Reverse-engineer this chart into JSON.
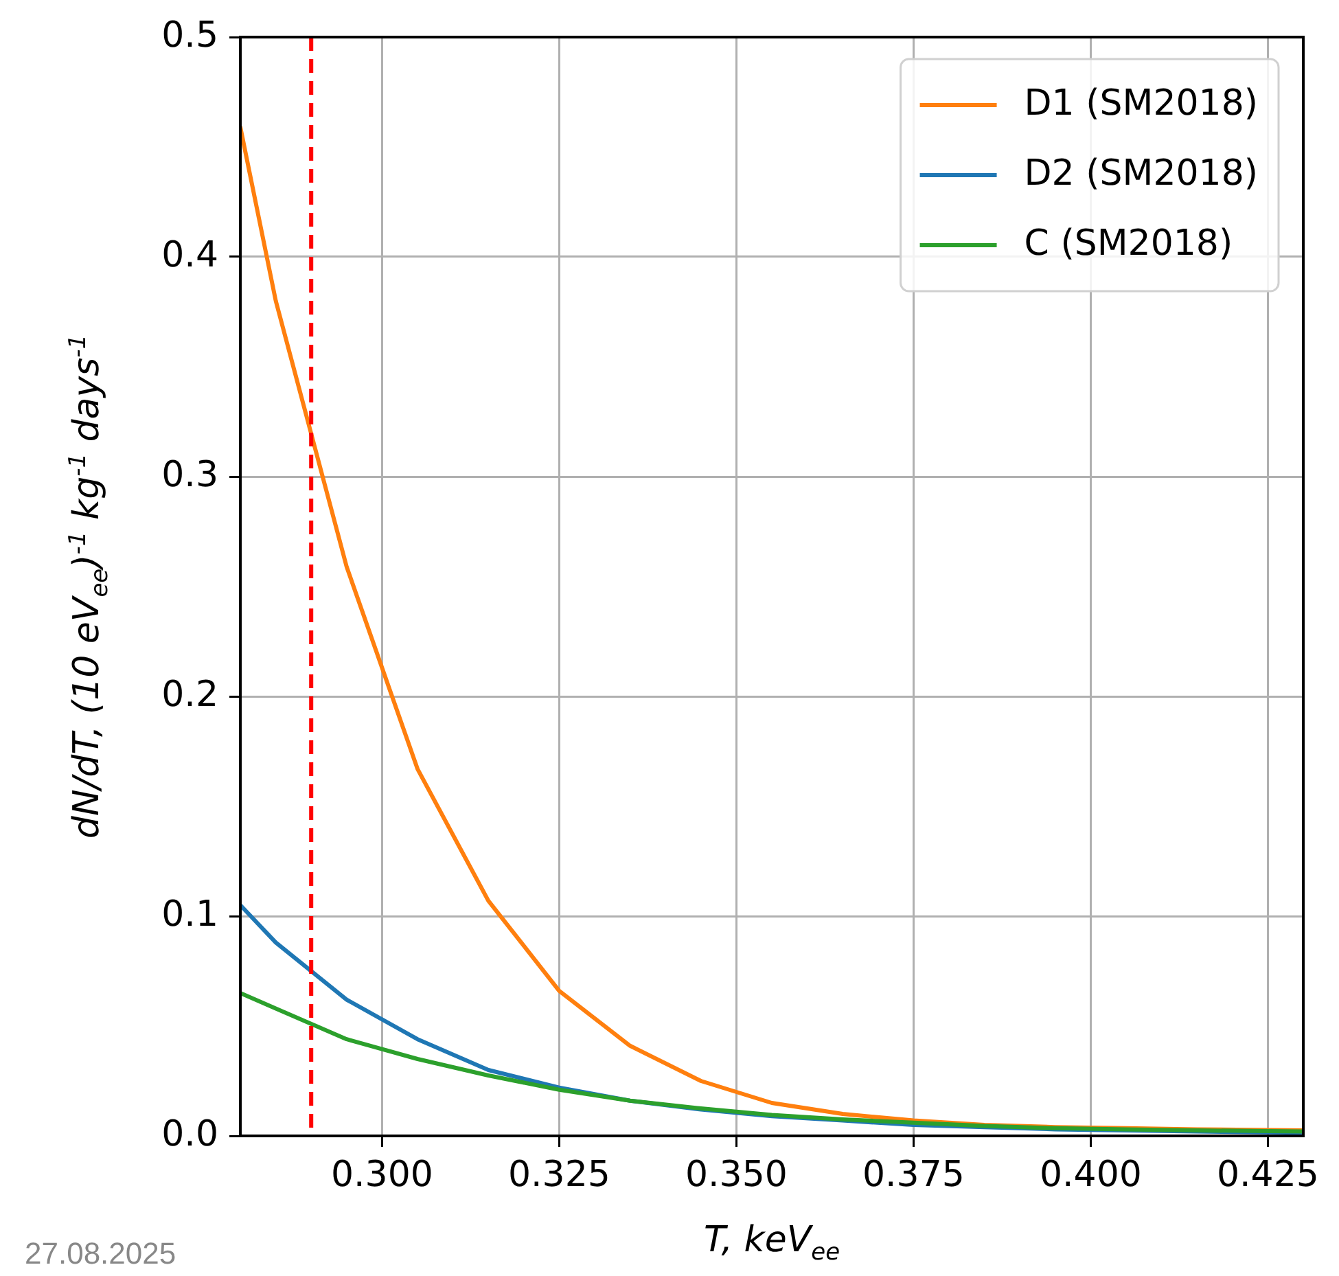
{
  "chart_data": {
    "type": "line",
    "xlabel": "T, keV$_{ee}$",
    "ylabel": "dN/dT, (10 eV$_{ee}$)$^{-1}$ kg$^{-1}$ days$^{-1}$",
    "x": [
      0.28,
      0.285,
      0.295,
      0.305,
      0.315,
      0.325,
      0.335,
      0.345,
      0.355,
      0.365,
      0.375,
      0.385,
      0.395,
      0.405,
      0.415,
      0.43
    ],
    "series": [
      {
        "name": "D1 (SM2018)",
        "color": "#ff7f0e",
        "values": [
          0.459,
          0.38,
          0.259,
          0.167,
          0.107,
          0.066,
          0.041,
          0.025,
          0.015,
          0.01,
          0.007,
          0.005,
          0.004,
          0.0035,
          0.003,
          0.0025
        ]
      },
      {
        "name": "D2 (SM2018)",
        "color": "#1f77b4",
        "values": [
          0.105,
          0.088,
          0.062,
          0.044,
          0.03,
          0.022,
          0.016,
          0.012,
          0.009,
          0.007,
          0.005,
          0.004,
          0.003,
          0.0025,
          0.002,
          0.0015
        ]
      },
      {
        "name": "C (SM2018)",
        "color": "#2ca02c",
        "values": [
          0.065,
          0.058,
          0.044,
          0.035,
          0.0275,
          0.021,
          0.016,
          0.0125,
          0.0095,
          0.0075,
          0.006,
          0.0045,
          0.0035,
          0.003,
          0.0025,
          0.002
        ]
      }
    ],
    "xlim": [
      0.28,
      0.43
    ],
    "xticks": [
      {
        "value": 0.3,
        "label": "0.300"
      },
      0.325,
      {
        "value": 0.35,
        "label": "0.350"
      },
      0.375,
      {
        "value": 0.4,
        "label": "0.400"
      },
      0.425
    ],
    "ylim": [
      0,
      0.5
    ],
    "yticks": [
      {
        "value": 0,
        "label": "0.0"
      },
      0.1,
      0.2,
      0.3,
      0.4,
      0.5
    ],
    "ref_lines": [
      {
        "axis": "x",
        "value": 0.29,
        "color": "#ff0000",
        "line_style": "dashed"
      }
    ],
    "annotations": [
      "27.08.2025"
    ],
    "grid": true,
    "legend": "top right",
    "marker": "none",
    "line_style": "solid"
  }
}
